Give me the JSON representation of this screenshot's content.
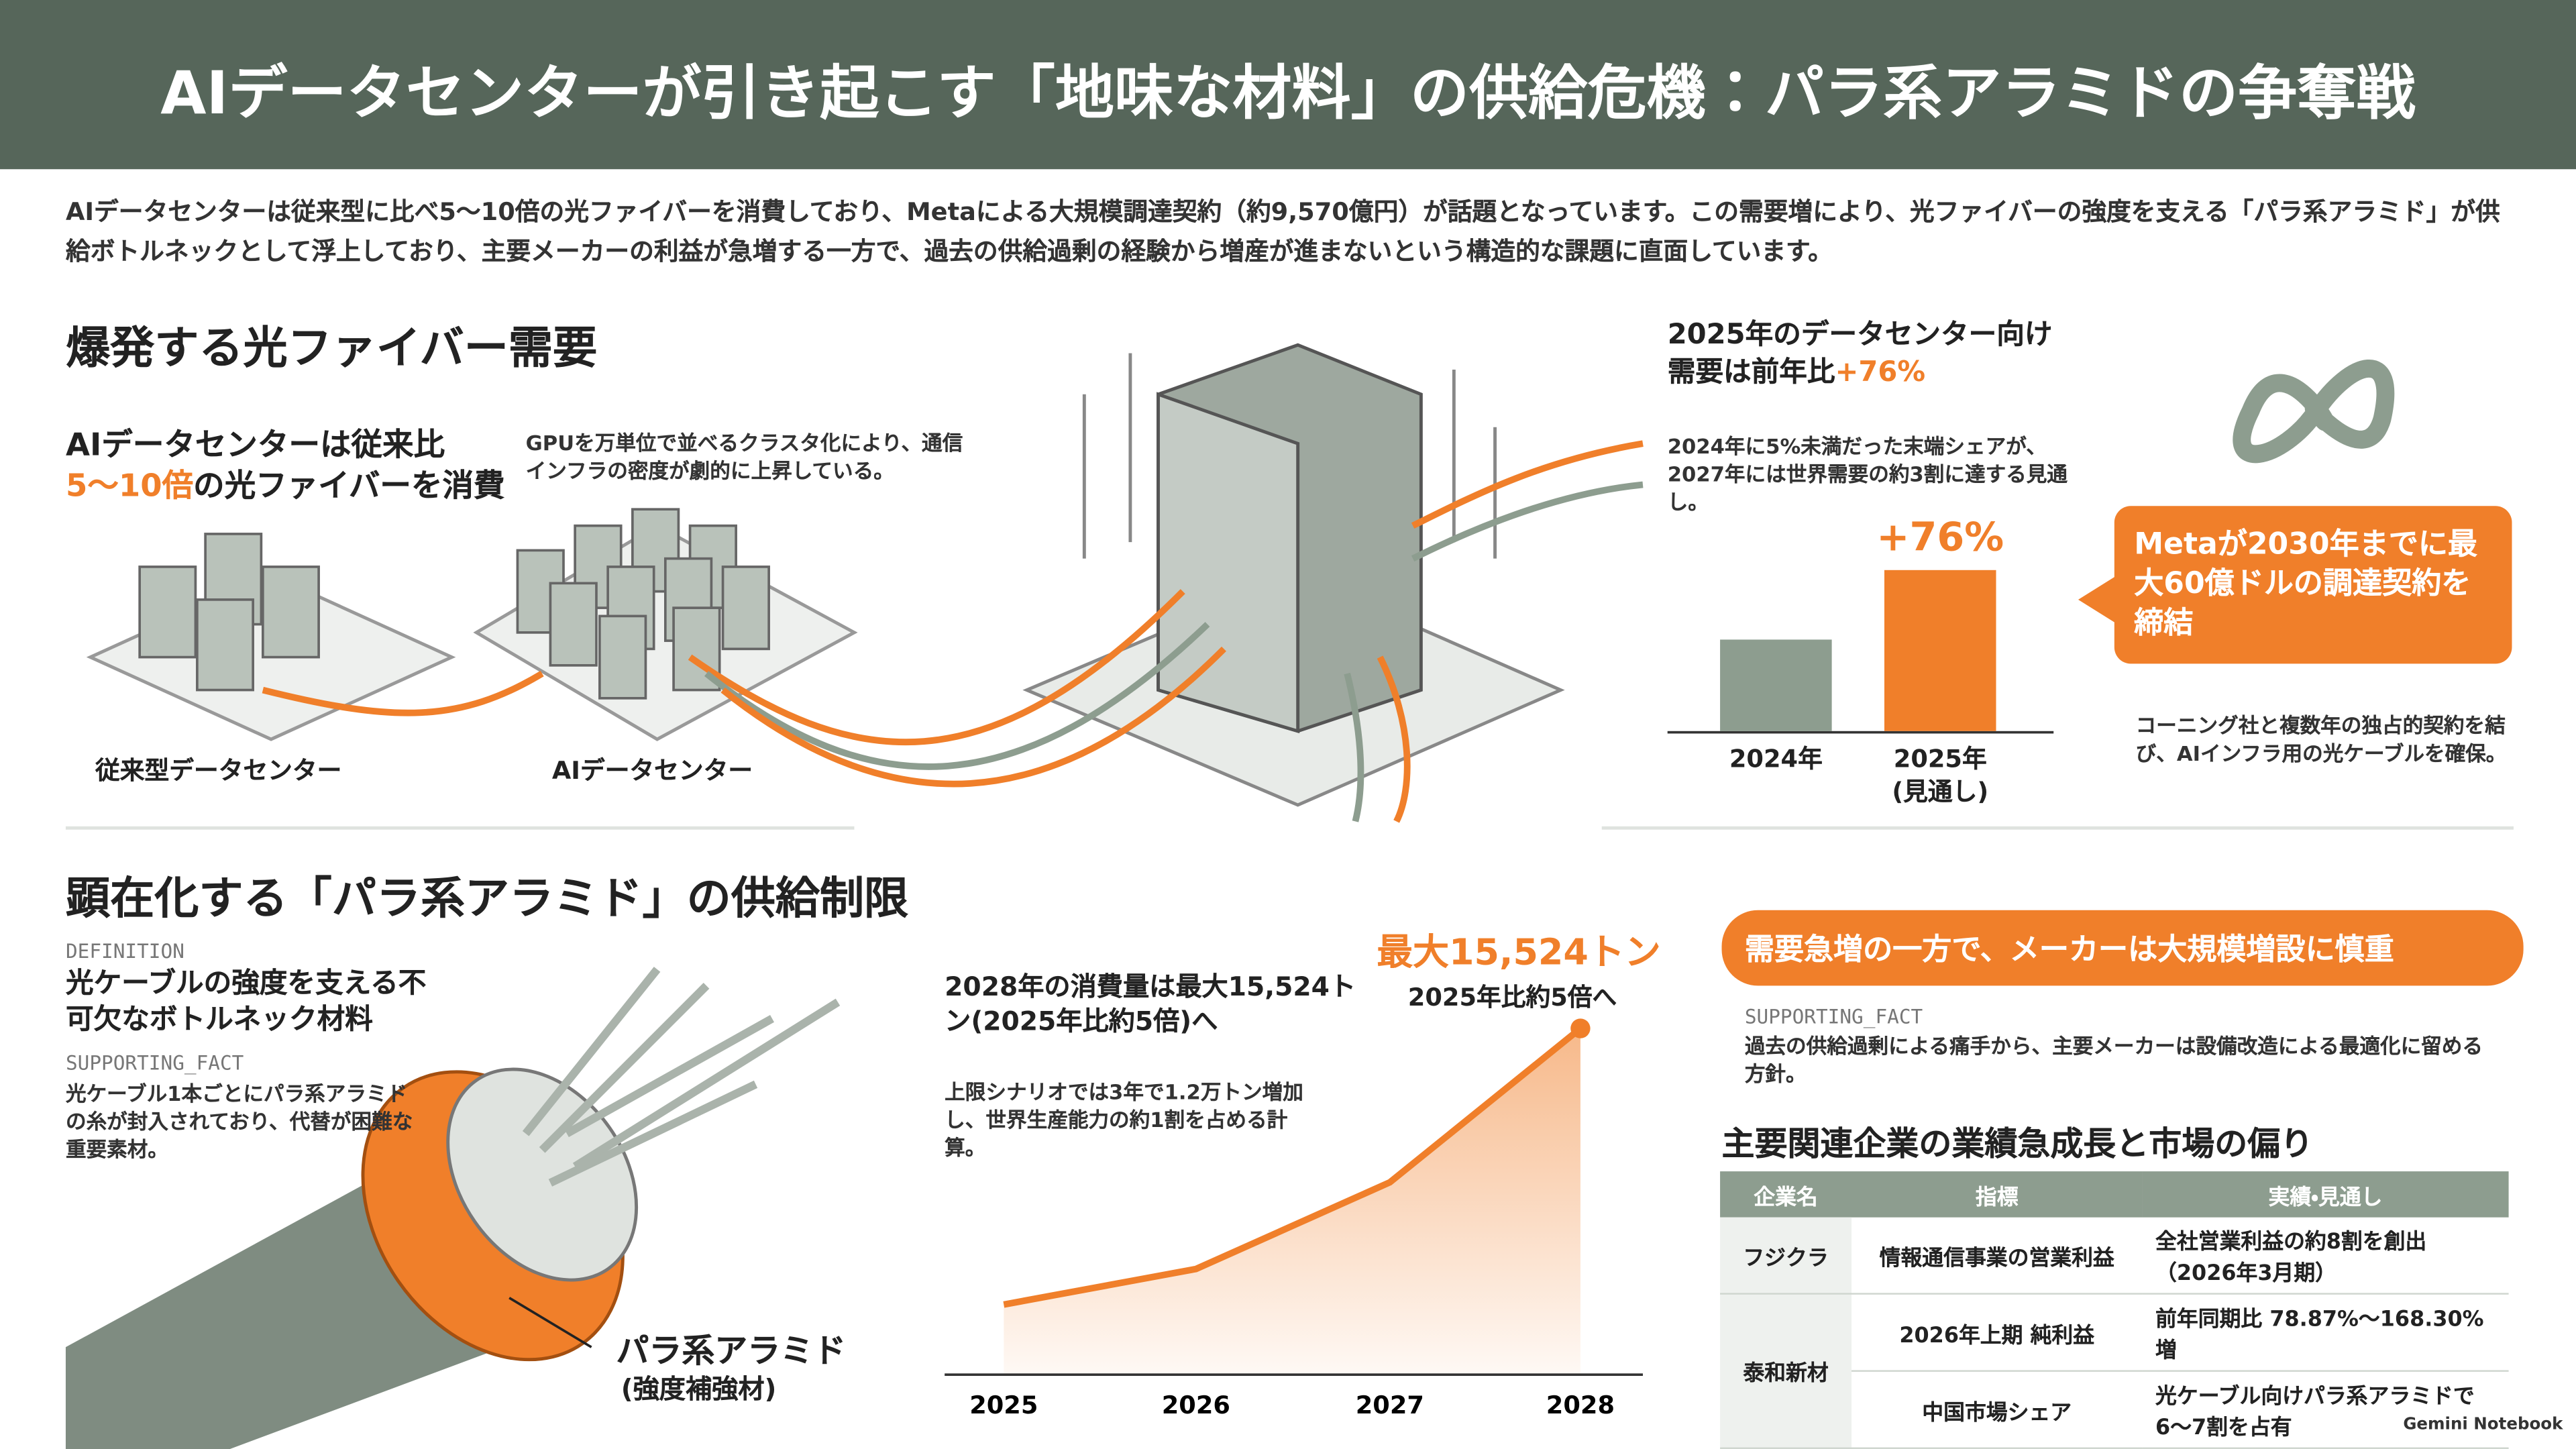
{
  "header": {
    "title": "AIデータセンターが引き起こす「地味な材料」の供給危機：パラ系アラミドの争奪戦"
  },
  "intro": "AIデータセンターは従来型に比べ5〜10倍の光ファイバーを消費しており、Metaによる大規模調達契約（約9,570億円）が話題となっています。この需要増により、光ファイバーの強度を支える「パラ系アラミド」が供給ボトルネックとして浮上しており、主要メーカーの利益が急増する一方で、過去の供給過剰の経験から増産が進まないという構造的な課題に直面しています。",
  "fiber": {
    "heading": "爆発する光ファイバー需要",
    "claim": {
      "line1": "AIデータセンターは従来比",
      "highlight": "5〜10倍",
      "rest": "の光ファイバーを消費"
    },
    "note": "GPUを万単位で並べるクラスタ化により、通信インフラの密度が劇的に上昇している。",
    "label_legacy": "従来型データセンター",
    "label_ai": "AIデータセンター",
    "demand_title": {
      "line1": "2025年のデータセンター向け",
      "line2": "需要は前年比",
      "highlight": "+76%"
    },
    "demand_note": "2024年に5%未満だった末端シェアが、2027年には世界需要の約3割に達する見通し。",
    "meta_callout": "Metaが2030年までに最大60億ドルの調達契約を締結",
    "meta_note": "コーニング社と複数年の独占的契約を結び、AIインフラ用の光ケーブルを確保。"
  },
  "aramid": {
    "heading": "顕在化する「パラ系アラミド」の供給制限",
    "definition_tag": "DEFINITION",
    "definition": "光ケーブルの強度を支える不可欠なボトルネック材料",
    "fact_tag": "SUPPORTING_FACT",
    "fact": "光ケーブル1本ごとにパラ系アラミドの糸が封入されており、代替が困難な重要素材。",
    "cable_label": "パラ系アラミド",
    "cable_sublabel": "(強度補強材)",
    "consumption_title": "2028年の消費量は最大15,524トン(2025年比約5倍)へ",
    "consumption_note": "上限シナリオでは3年で1.2万トン増加し、世界生産能力の約1割を占める計算。",
    "maker_callout": "需要急増の一方で、メーカーは大規模増設に慎重",
    "maker_tag": "SUPPORTING_FACT",
    "maker_fact": "過去の供給過剰による痛手から、主要メーカーは設備改造による最適化に留める方針。"
  },
  "table": {
    "title": "主要関連企業の業績急成長と市場の偏り",
    "headers": [
      "企業名",
      "指標",
      "実績・見通し"
    ],
    "rows": [
      {
        "company": "フジクラ",
        "items": [
          [
            "情報通信事業の営業利益",
            "全社営業利益の約8割を創出（2026年3月期）"
          ]
        ]
      },
      {
        "company": "泰和新材",
        "items": [
          [
            "2026年上期 純利益",
            "前年同期比 78.87%〜168.30% 増"
          ],
          [
            "中国市場シェア",
            "光ケーブル向けパラ系アラミドで6〜7割を占有"
          ]
        ]
      }
    ]
  },
  "footer": "Gemini Notebook",
  "chart_data": [
    {
      "type": "bar",
      "categories": [
        "2024年",
        "2025年\n(見通し)"
      ],
      "values": [
        100,
        176
      ],
      "colors": [
        "#8d9d8f",
        "#f07f2a"
      ],
      "annotation": "+76%"
    },
    {
      "type": "line",
      "categories": [
        "2025",
        "2026",
        "2027",
        "2028"
      ],
      "values": [
        3100,
        4700,
        8600,
        15524
      ],
      "color": "#f07f2a",
      "annotation": "最大15,524トン",
      "annotation_sub": "2025年比約5倍へ"
    }
  ]
}
